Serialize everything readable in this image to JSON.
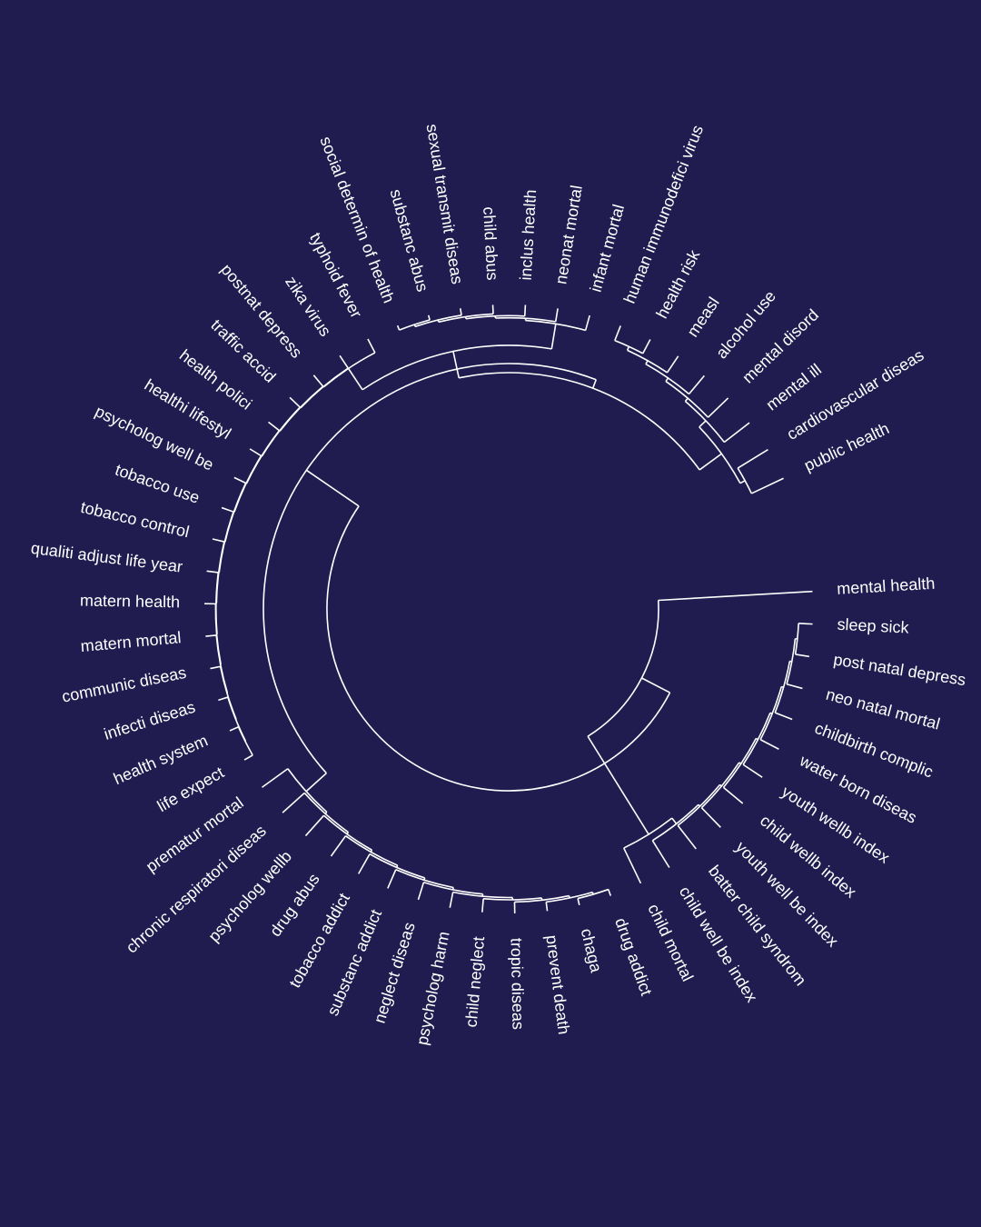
{
  "colors": {
    "background": "#201c50",
    "line": "#ffffff",
    "text": "#ffffff"
  },
  "leaves": [
    "mental health",
    "sleep sick",
    "post natal depress",
    "neo natal mortal",
    "childbirth complic",
    "water born diseas",
    "youth wellb index",
    "child wellb index",
    "youth well be index",
    "batter child syndrom",
    "child well be index",
    "child mortal",
    "drug addict",
    "chaga",
    "prevent death",
    "tropic diseas",
    "child neglect",
    "psycholog harm",
    "neglect diseas",
    "substanc addict",
    "tobacco addict",
    "drug abus",
    "psycholog wellb",
    "chronic respiratori diseas",
    "prematur mortal",
    "life expect",
    "health system",
    "infecti diseas",
    "communic diseas",
    "matern mortal",
    "matern health",
    "qualiti adjust life year",
    "tobacco control",
    "tobacco use",
    "psycholog well be",
    "healthi lifestyl",
    "health polici",
    "traffic accid",
    "postnat depress",
    "zika virus",
    "typhoid fever",
    "social determin of health",
    "substanc abus",
    "sexual transmit diseas",
    "child abus",
    "inclus health",
    "neonat mortal",
    "infant mortal",
    "human immunodefici virus",
    "health risk",
    "measl",
    "alcohol use",
    "mental disord",
    "mental ill",
    "cardiovascular diseas",
    "public health"
  ]
}
